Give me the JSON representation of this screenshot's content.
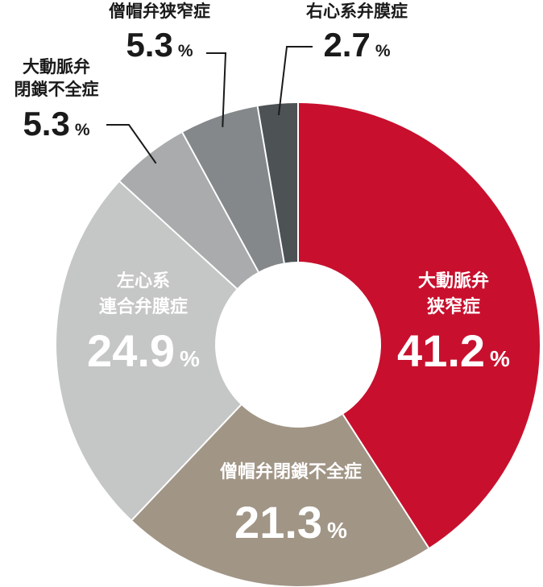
{
  "chart_data": {
    "type": "pie",
    "donut": true,
    "title": "",
    "unit": "%",
    "slices": [
      {
        "name_lines": [
          "大動脈弁",
          "狭窄症"
        ],
        "value": 41.2,
        "value_label": "41.2",
        "color": "#c8102e",
        "label_placement": "inside",
        "text_color": "#ffffff"
      },
      {
        "name_lines": [
          "僧帽弁閉鎖不全症"
        ],
        "value": 21.3,
        "value_label": "21.3",
        "color": "#a19586",
        "label_placement": "inside",
        "text_color": "#ffffff"
      },
      {
        "name_lines": [
          "左心系",
          "連合弁膜症"
        ],
        "value": 24.9,
        "value_label": "24.9",
        "color": "#c5c6c6",
        "label_placement": "inside",
        "text_color": "#ffffff"
      },
      {
        "name_lines": [
          "大動脈弁",
          "閉鎖不全症"
        ],
        "value": 5.3,
        "value_label": "5.3",
        "color": "#a9abac",
        "label_placement": "outside",
        "text_color": "#1a1a1a"
      },
      {
        "name_lines": [
          "僧帽弁狭窄症"
        ],
        "value": 5.3,
        "value_label": "5.3",
        "color": "#84888b",
        "label_placement": "outside",
        "text_color": "#1a1a1a"
      },
      {
        "name_lines": [
          "右心系弁膜症"
        ],
        "value": 2.7,
        "value_label": "2.7",
        "color": "#4d5255",
        "label_placement": "outside",
        "text_color": "#1a1a1a"
      }
    ]
  }
}
